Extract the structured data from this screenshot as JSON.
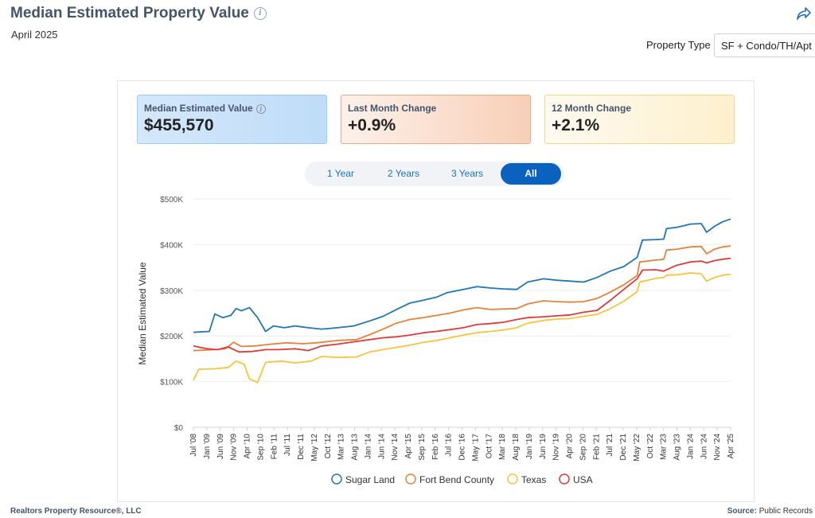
{
  "header": {
    "title": "Median Estimated Property Value",
    "subtitle": "April 2025",
    "property_type_label": "Property Type",
    "property_type_value": "SF + Condo/TH/Apt"
  },
  "cards": [
    {
      "label": "Median Estimated Value",
      "value": "$455,570"
    },
    {
      "label": "Last Month Change",
      "value": "+0.9%"
    },
    {
      "label": "12 Month Change",
      "value": "+2.1%"
    }
  ],
  "ranges": [
    "1 Year",
    "2 Years",
    "3 Years",
    "All"
  ],
  "active_range": "All",
  "footer": {
    "left": "Realtors Property Resource®, LLC",
    "source_label": "Source:",
    "source_value": "Public Records"
  },
  "colors": {
    "sugar_land": "#1f77b4",
    "fort_bend": "#e8823a",
    "texas": "#f5c53b",
    "usa": "#df3b3b"
  },
  "chart_data": {
    "type": "line",
    "ylabel": "Median Estimated Value",
    "xlabel": "",
    "ylim": [
      0,
      500000
    ],
    "yticks": [
      "$0",
      "$100K",
      "$200K",
      "$300K",
      "$400K",
      "$500K"
    ],
    "ytick_values": [
      0,
      100000,
      200000,
      300000,
      400000,
      500000
    ],
    "x_tick_labels": [
      "Jul '08",
      "Jan '09",
      "Jun '09",
      "Nov '09",
      "Apr '10",
      "Sep '10",
      "Feb '11",
      "Jul '11",
      "Dec '11",
      "May '12",
      "Oct '12",
      "Mar '13",
      "Aug '13",
      "Jan '14",
      "Jun '14",
      "Nov '14",
      "Apr '15",
      "Sep '15",
      "Feb '16",
      "Jul '16",
      "Dec '16",
      "May '17",
      "Oct '17",
      "Mar '18",
      "Aug '18",
      "Jan '19",
      "Jun '19",
      "Nov '19",
      "Apr '20",
      "Sep '20",
      "Feb '21",
      "Jul '21",
      "Dec '21",
      "May '22",
      "Oct '22",
      "Mar '23",
      "Aug '23",
      "Jan '24",
      "Jun '24",
      "Nov '24",
      "Apr '25"
    ],
    "x_start": "2008-07",
    "x_end": "2025-04",
    "legend": "bottom",
    "grid": true,
    "series": [
      {
        "name": "Sugar Land",
        "points": [
          [
            "2008-07",
            208000
          ],
          [
            "2009-01",
            210000
          ],
          [
            "2009-03",
            248000
          ],
          [
            "2009-06",
            240000
          ],
          [
            "2009-09",
            245000
          ],
          [
            "2009-11",
            260000
          ],
          [
            "2010-01",
            255000
          ],
          [
            "2010-04",
            262000
          ],
          [
            "2010-07",
            240000
          ],
          [
            "2010-10",
            210000
          ],
          [
            "2011-01",
            222000
          ],
          [
            "2011-05",
            218000
          ],
          [
            "2011-09",
            222000
          ],
          [
            "2012-02",
            218000
          ],
          [
            "2012-07",
            215000
          ],
          [
            "2013-01",
            218000
          ],
          [
            "2013-07",
            222000
          ],
          [
            "2014-01",
            233000
          ],
          [
            "2014-06",
            243000
          ],
          [
            "2014-11",
            258000
          ],
          [
            "2015-04",
            272000
          ],
          [
            "2015-09",
            278000
          ],
          [
            "2016-02",
            285000
          ],
          [
            "2016-06",
            295000
          ],
          [
            "2016-12",
            302000
          ],
          [
            "2017-05",
            308000
          ],
          [
            "2017-10",
            305000
          ],
          [
            "2018-03",
            303000
          ],
          [
            "2018-08",
            302000
          ],
          [
            "2018-12",
            318000
          ],
          [
            "2019-06",
            325000
          ],
          [
            "2019-11",
            322000
          ],
          [
            "2020-04",
            320000
          ],
          [
            "2020-09",
            318000
          ],
          [
            "2021-02",
            328000
          ],
          [
            "2021-07",
            342000
          ],
          [
            "2021-12",
            352000
          ],
          [
            "2022-05",
            372000
          ],
          [
            "2022-07",
            410000
          ],
          [
            "2022-12",
            411000
          ],
          [
            "2023-03",
            412000
          ],
          [
            "2023-04",
            435000
          ],
          [
            "2023-08",
            438000
          ],
          [
            "2024-01",
            445000
          ],
          [
            "2024-05",
            446000
          ],
          [
            "2024-07",
            427000
          ],
          [
            "2024-10",
            440000
          ],
          [
            "2025-01",
            450000
          ],
          [
            "2025-04",
            456000
          ]
        ]
      },
      {
        "name": "Fort Bend County",
        "points": [
          [
            "2008-07",
            168000
          ],
          [
            "2009-03",
            170000
          ],
          [
            "2009-07",
            172000
          ],
          [
            "2009-10",
            186000
          ],
          [
            "2010-01",
            177000
          ],
          [
            "2010-06",
            178000
          ],
          [
            "2010-12",
            182000
          ],
          [
            "2011-06",
            185000
          ],
          [
            "2011-12",
            183000
          ],
          [
            "2012-05",
            185000
          ],
          [
            "2013-01",
            190000
          ],
          [
            "2013-08",
            192000
          ],
          [
            "2014-01",
            203000
          ],
          [
            "2014-06",
            215000
          ],
          [
            "2014-11",
            228000
          ],
          [
            "2015-04",
            236000
          ],
          [
            "2015-09",
            240000
          ],
          [
            "2016-02",
            245000
          ],
          [
            "2016-07",
            250000
          ],
          [
            "2016-12",
            257000
          ],
          [
            "2017-05",
            262000
          ],
          [
            "2017-10",
            258000
          ],
          [
            "2018-03",
            259000
          ],
          [
            "2018-08",
            260000
          ],
          [
            "2018-12",
            270000
          ],
          [
            "2019-06",
            277000
          ],
          [
            "2019-11",
            275000
          ],
          [
            "2020-04",
            274000
          ],
          [
            "2020-09",
            275000
          ],
          [
            "2021-02",
            282000
          ],
          [
            "2021-07",
            296000
          ],
          [
            "2021-12",
            312000
          ],
          [
            "2022-05",
            332000
          ],
          [
            "2022-06",
            362000
          ],
          [
            "2022-12",
            366000
          ],
          [
            "2023-03",
            368000
          ],
          [
            "2023-04",
            388000
          ],
          [
            "2023-08",
            390000
          ],
          [
            "2024-01",
            395000
          ],
          [
            "2024-05",
            396000
          ],
          [
            "2024-07",
            380000
          ],
          [
            "2024-10",
            390000
          ],
          [
            "2025-01",
            395000
          ],
          [
            "2025-04",
            397000
          ]
        ]
      },
      {
        "name": "Texas",
        "points": [
          [
            "2008-07",
            103000
          ],
          [
            "2008-09",
            127000
          ],
          [
            "2009-03",
            128000
          ],
          [
            "2009-08",
            131000
          ],
          [
            "2009-11",
            145000
          ],
          [
            "2010-02",
            138000
          ],
          [
            "2010-04",
            106000
          ],
          [
            "2010-07",
            98000
          ],
          [
            "2010-10",
            142000
          ],
          [
            "2011-04",
            145000
          ],
          [
            "2011-09",
            141000
          ],
          [
            "2012-03",
            145000
          ],
          [
            "2012-07",
            155000
          ],
          [
            "2013-01",
            153000
          ],
          [
            "2013-08",
            154000
          ],
          [
            "2014-01",
            165000
          ],
          [
            "2014-06",
            170000
          ],
          [
            "2014-11",
            175000
          ],
          [
            "2015-04",
            180000
          ],
          [
            "2015-09",
            186000
          ],
          [
            "2016-02",
            190000
          ],
          [
            "2016-07",
            196000
          ],
          [
            "2016-12",
            202000
          ],
          [
            "2017-05",
            207000
          ],
          [
            "2017-10",
            210000
          ],
          [
            "2018-03",
            213000
          ],
          [
            "2018-08",
            218000
          ],
          [
            "2018-12",
            228000
          ],
          [
            "2019-06",
            234000
          ],
          [
            "2019-11",
            237000
          ],
          [
            "2020-04",
            238000
          ],
          [
            "2020-09",
            243000
          ],
          [
            "2021-02",
            247000
          ],
          [
            "2021-07",
            260000
          ],
          [
            "2021-12",
            276000
          ],
          [
            "2022-05",
            297000
          ],
          [
            "2022-06",
            318000
          ],
          [
            "2022-12",
            326000
          ],
          [
            "2023-03",
            328000
          ],
          [
            "2023-04",
            333000
          ],
          [
            "2023-08",
            334000
          ],
          [
            "2024-01",
            338000
          ],
          [
            "2024-05",
            336000
          ],
          [
            "2024-07",
            320000
          ],
          [
            "2024-10",
            328000
          ],
          [
            "2025-01",
            333000
          ],
          [
            "2025-04",
            335000
          ]
        ]
      },
      {
        "name": "USA",
        "points": [
          [
            "2008-07",
            178000
          ],
          [
            "2008-12",
            172000
          ],
          [
            "2009-04",
            170000
          ],
          [
            "2009-08",
            176000
          ],
          [
            "2009-12",
            165000
          ],
          [
            "2010-05",
            166000
          ],
          [
            "2010-10",
            170000
          ],
          [
            "2011-03",
            170000
          ],
          [
            "2011-09",
            172000
          ],
          [
            "2012-02",
            168000
          ],
          [
            "2012-07",
            178000
          ],
          [
            "2013-01",
            182000
          ],
          [
            "2013-08",
            188000
          ],
          [
            "2014-01",
            192000
          ],
          [
            "2014-06",
            196000
          ],
          [
            "2014-11",
            198000
          ],
          [
            "2015-04",
            202000
          ],
          [
            "2015-09",
            207000
          ],
          [
            "2016-02",
            210000
          ],
          [
            "2016-07",
            214000
          ],
          [
            "2016-12",
            218000
          ],
          [
            "2017-05",
            225000
          ],
          [
            "2017-10",
            227000
          ],
          [
            "2018-03",
            230000
          ],
          [
            "2018-08",
            236000
          ],
          [
            "2018-12",
            240000
          ],
          [
            "2019-06",
            242000
          ],
          [
            "2019-11",
            244000
          ],
          [
            "2020-04",
            246000
          ],
          [
            "2020-09",
            252000
          ],
          [
            "2021-02",
            256000
          ],
          [
            "2021-07",
            278000
          ],
          [
            "2021-12",
            302000
          ],
          [
            "2022-05",
            325000
          ],
          [
            "2022-07",
            344000
          ],
          [
            "2022-12",
            345000
          ],
          [
            "2023-03",
            342000
          ],
          [
            "2023-06",
            350000
          ],
          [
            "2023-08",
            355000
          ],
          [
            "2024-01",
            362000
          ],
          [
            "2024-05",
            364000
          ],
          [
            "2024-07",
            360000
          ],
          [
            "2024-10",
            365000
          ],
          [
            "2025-01",
            368000
          ],
          [
            "2025-04",
            370000
          ]
        ]
      }
    ]
  }
}
